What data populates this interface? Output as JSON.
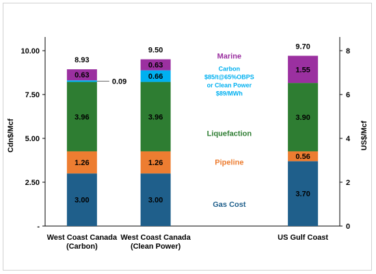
{
  "chart_data": {
    "type": "bar",
    "stacked": true,
    "categories": [
      [
        "West Coast Canada",
        "(Carbon)"
      ],
      [
        "West Coast Canada",
        "(Clean Power)"
      ],
      [
        "US Gulf Coast"
      ]
    ],
    "category_slots": [
      0,
      1,
      3
    ],
    "totals": [
      "8.93",
      "9.50",
      "9.70"
    ],
    "series": [
      {
        "name": "Gas Cost",
        "color": "#1f5f8b",
        "label_color": "#1f5f8b",
        "values": [
          3.0,
          3.0,
          3.7
        ],
        "labels": [
          "3.00",
          "3.00",
          "3.70"
        ]
      },
      {
        "name": "Pipeline",
        "color": "#ed7d31",
        "label_color": "#ed7d31",
        "values": [
          1.26,
          1.26,
          0.56
        ],
        "labels": [
          "1.26",
          "1.26",
          "0.56"
        ]
      },
      {
        "name": "Liquefaction",
        "color": "#2e7d32",
        "label_color": "#2e7d32",
        "values": [
          3.96,
          3.96,
          3.9
        ],
        "labels": [
          "3.96",
          "3.96",
          "3.90"
        ]
      },
      {
        "name": "Carbon $85/t@65%OBPS or Clean Power $89/MWh",
        "legend_lines": [
          "Carbon",
          "$85/t@65%OBPS",
          "or Clean Power",
          "$89/MWh"
        ],
        "color": "#00b0f0",
        "label_color": "#00b0f0",
        "values": [
          0.09,
          0.66,
          0
        ],
        "labels": [
          "0.09",
          "0.66",
          ""
        ]
      },
      {
        "name": "Marine",
        "color": "#9b30a0",
        "label_color": "#9b30a0",
        "values": [
          0.63,
          0.63,
          1.55
        ],
        "labels": [
          "0.63",
          "0.63",
          "1.55"
        ]
      }
    ],
    "ylabel": "Cdn$/Mcf",
    "ylim": [
      0,
      10.4
    ],
    "yticks": [
      0,
      2.5,
      5,
      7.5,
      10
    ],
    "ytick_labels": [
      "-",
      "2.50",
      "5.00",
      "7.50",
      "10.00"
    ],
    "y2label": "US$/Mcf",
    "y2lim": [
      0,
      8.32
    ],
    "y2ticks": [
      0,
      2,
      4,
      6,
      8
    ],
    "y2tick_labels": [
      "0",
      "2",
      "4",
      "6",
      "8"
    ],
    "grid": false
  }
}
